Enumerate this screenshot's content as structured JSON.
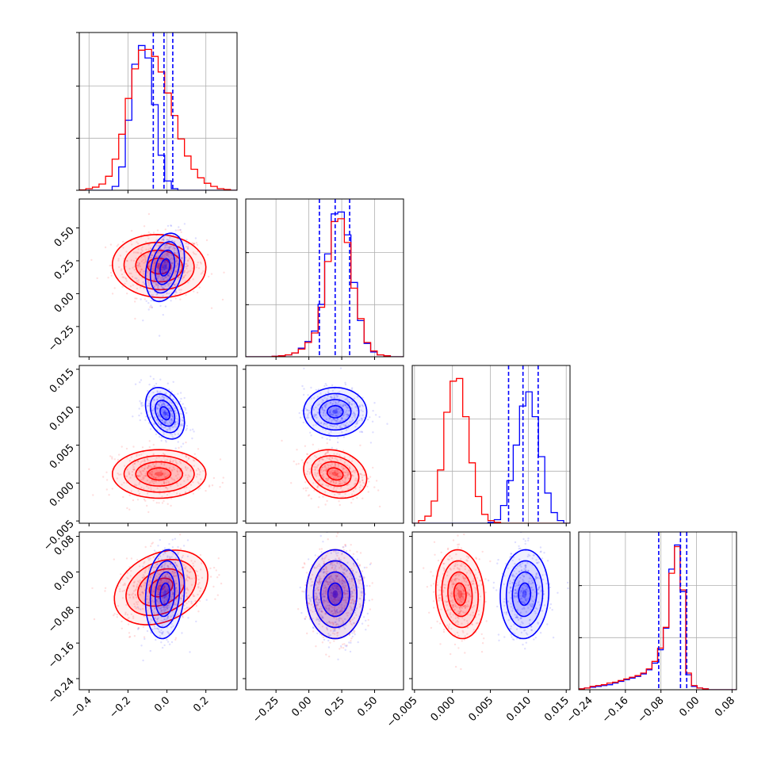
{
  "chart_data": {
    "type": "corner",
    "grid": true,
    "series": [
      {
        "color": "#ff0000"
      },
      {
        "color": "#0000ff"
      }
    ],
    "params": [
      {
        "range": [
          -0.45,
          0.36
        ],
        "ticks": [
          "−0.4",
          "−0.2",
          "0.0",
          "0.2"
        ],
        "tick_values": [
          -0.4,
          -0.2,
          0.0,
          0.2
        ]
      },
      {
        "range": [
          -0.48,
          0.72
        ],
        "ticks": [
          "−0.25",
          "0.00",
          "0.25",
          "0.50"
        ],
        "tick_values": [
          -0.25,
          0.0,
          0.25,
          0.5
        ]
      },
      {
        "range": [
          -0.0053,
          0.0155
        ],
        "ticks": [
          "−0.005",
          "0.000",
          "0.005",
          "0.010",
          "0.015"
        ],
        "tick_values": [
          -0.005,
          0.0,
          0.005,
          0.01,
          0.015
        ]
      },
      {
        "range": [
          -0.265,
          0.09
        ],
        "ticks": [
          "−0.24",
          "−0.16",
          "−0.08",
          "0.00",
          "0.08"
        ],
        "tick_values": [
          -0.24,
          -0.16,
          -0.08,
          0.0,
          0.08
        ]
      }
    ],
    "histograms": [
      {
        "edges": [
          -0.45,
          0.36
        ],
        "bins": 24,
        "red": [
          0.5,
          2,
          4,
          8,
          18,
          40,
          72,
          118,
          156,
          180,
          181,
          172,
          152,
          125,
          96,
          66,
          44,
          27,
          16,
          9,
          5,
          2,
          1,
          0
        ],
        "blue": [
          0,
          0,
          0,
          0,
          0,
          5,
          30,
          90,
          162,
          186,
          170,
          110,
          45,
          12,
          2,
          0,
          0,
          0,
          0,
          0,
          0,
          0,
          0,
          0
        ],
        "quantiles_blue": [
          -0.07,
          -0.015,
          0.03
        ]
      },
      {
        "edges": [
          -0.48,
          0.72
        ],
        "bins": 24,
        "red": [
          0,
          0,
          0,
          0,
          0.5,
          1,
          2,
          4,
          8,
          15,
          25,
          52,
          100,
          142,
          145,
          120,
          72,
          40,
          15,
          6,
          2,
          1,
          0,
          0
        ],
        "blue": [
          0,
          0,
          0,
          0,
          0.5,
          1,
          2,
          4,
          9,
          16,
          27,
          55,
          108,
          150,
          152,
          128,
          78,
          38,
          14,
          5,
          2,
          1,
          0,
          0
        ],
        "quantiles_blue": [
          0.08,
          0.2,
          0.31
        ]
      },
      {
        "edges": [
          -0.0053,
          0.0155
        ],
        "bins": 25,
        "red": [
          0,
          3,
          8,
          25,
          60,
          125,
          160,
          163,
          120,
          68,
          30,
          10,
          3,
          1,
          0,
          0,
          0,
          0,
          0,
          0,
          0,
          0,
          0,
          0,
          0
        ],
        "blue": [
          0,
          0,
          0,
          0,
          0,
          0,
          0,
          0,
          0,
          0,
          0,
          0,
          1,
          4,
          20,
          48,
          88,
          132,
          148,
          120,
          75,
          34,
          12,
          3,
          0
        ],
        "quantiles_blue": [
          0.0074,
          0.0093,
          0.0113
        ]
      },
      {
        "edges": [
          -0.265,
          0.09
        ],
        "bins": 28,
        "red": [
          1,
          2,
          4,
          5,
          6,
          8,
          9,
          11,
          13,
          15,
          17,
          20,
          25,
          34,
          50,
          75,
          140,
          172,
          120,
          20,
          5,
          2,
          1,
          0,
          0,
          0,
          0,
          0
        ],
        "blue": [
          1,
          2,
          3,
          4,
          5,
          6,
          8,
          10,
          12,
          14,
          16,
          19,
          24,
          32,
          48,
          74,
          145,
          174,
          118,
          18,
          4,
          2,
          1,
          0,
          0,
          0,
          0,
          0
        ],
        "quantiles_blue": [
          -0.085,
          -0.036,
          -0.022
        ]
      }
    ],
    "pairs": [
      {
        "row": 1,
        "col": 0,
        "red": {
          "mean": [
            -0.04,
            0.21
          ],
          "sd": [
            0.12,
            0.12
          ],
          "rho": -0.05
        },
        "blue": {
          "mean": [
            -0.01,
            0.2
          ],
          "sd": [
            0.05,
            0.13
          ],
          "rho": 0.3
        }
      },
      {
        "row": 2,
        "col": 0,
        "red": {
          "mean": [
            -0.04,
            0.0012
          ],
          "sd": [
            0.12,
            0.0016
          ],
          "rho": 0.0
        },
        "blue": {
          "mean": [
            -0.01,
            0.0092
          ],
          "sd": [
            0.05,
            0.0017
          ],
          "rho": -0.35
        }
      },
      {
        "row": 2,
        "col": 1,
        "red": {
          "mean": [
            0.2,
            0.0012
          ],
          "sd": [
            0.12,
            0.0016
          ],
          "rho": -0.2
        },
        "blue": {
          "mean": [
            0.2,
            0.0094
          ],
          "sd": [
            0.12,
            0.0016
          ],
          "rho": 0.0
        }
      },
      {
        "row": 3,
        "col": 0,
        "red": {
          "mean": [
            -0.03,
            -0.035
          ],
          "sd": [
            0.12,
            0.042
          ],
          "rho": 0.3
        },
        "blue": {
          "mean": [
            -0.01,
            -0.05
          ],
          "sd": [
            0.05,
            0.05
          ],
          "rho": 0.15
        }
      },
      {
        "row": 3,
        "col": 1,
        "red": {
          "mean": [
            0.2,
            -0.05
          ],
          "sd": [
            0.11,
            0.05
          ],
          "rho": 0.0
        },
        "blue": {
          "mean": [
            0.2,
            -0.05
          ],
          "sd": [
            0.11,
            0.05
          ],
          "rho": 0.0
        }
      },
      {
        "row": 3,
        "col": 2,
        "red": {
          "mean": [
            0.001,
            -0.05
          ],
          "sd": [
            0.0016,
            0.05
          ],
          "rho": -0.1
        },
        "blue": {
          "mean": [
            0.0095,
            -0.05
          ],
          "sd": [
            0.0016,
            0.05
          ],
          "rho": 0.05
        }
      }
    ]
  }
}
